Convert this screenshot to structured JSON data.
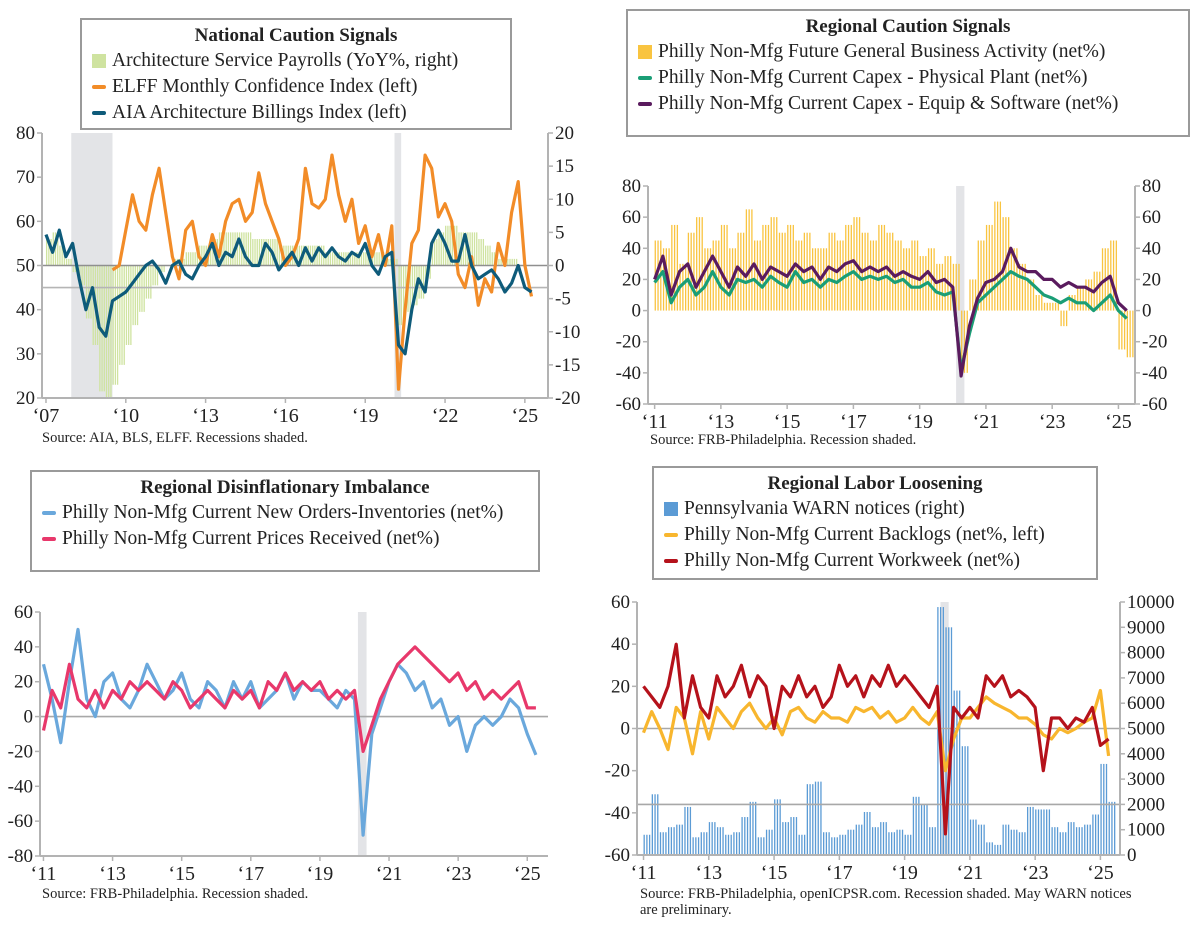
{
  "chart_data": [
    {
      "type": "bar+line",
      "title": "National Caution Signals",
      "source": "Source: AIA, BLS, ELFF. Recessions shaded.",
      "left_axis": {
        "min": 20,
        "max": 80,
        "ticks": [
          20,
          30,
          40,
          50,
          60,
          70,
          80
        ]
      },
      "right_axis": {
        "min": -20,
        "max": 20,
        "ticks": [
          -20,
          -15,
          -10,
          -5,
          0,
          5,
          10,
          15,
          20
        ]
      },
      "xticks": [
        {
          "year": 2007,
          "label": "‘07"
        },
        {
          "year": 2010,
          "label": "‘10"
        },
        {
          "year": 2013,
          "label": "‘13"
        },
        {
          "year": 2016,
          "label": "‘16"
        },
        {
          "year": 2019,
          "label": "‘19"
        },
        {
          "year": 2022,
          "label": "‘22"
        },
        {
          "year": 2025,
          "label": "‘25"
        }
      ],
      "recessions": [
        [
          2007.95,
          2009.5
        ],
        [
          2020.1,
          2020.35
        ]
      ],
      "hlines": [
        {
          "axis": "left",
          "value": 50,
          "color": "#8f8f8f"
        },
        {
          "axis": "left",
          "value": 45,
          "color": "#b5b5b5"
        }
      ],
      "series": [
        {
          "name": "Architecture Service Payrolls (YoY%, right)",
          "type": "bar",
          "axis": "right",
          "color": "#cfe3a0",
          "start": 2007,
          "step": 0.25,
          "values": [
            4,
            5,
            3,
            1,
            -1,
            -3,
            -8,
            -12,
            -19,
            -20,
            -18,
            -15,
            -12,
            -9,
            -7,
            -5,
            -3,
            -1,
            0,
            1,
            1,
            2,
            2,
            3,
            3,
            4,
            5,
            5,
            5,
            5,
            5,
            4,
            4,
            4,
            4,
            3,
            3,
            3,
            3,
            3,
            3,
            3,
            2,
            2,
            2,
            2,
            2,
            2,
            2,
            2,
            2,
            1,
            1,
            -9,
            -7,
            -6,
            -5,
            -2,
            4,
            5,
            6,
            6,
            5,
            5,
            5,
            4,
            3,
            2,
            1,
            1,
            1,
            0,
            0,
            0
          ]
        },
        {
          "name": "ELFF Monthly Confidence Index (left)",
          "type": "line",
          "axis": "left",
          "color": "#f28c28",
          "start": 2009.5,
          "step": 0.25,
          "values": [
            49,
            50,
            58,
            66,
            60,
            58,
            66,
            72,
            62,
            52,
            47,
            58,
            60,
            52,
            50,
            57,
            52,
            60,
            64,
            65,
            60,
            62,
            71,
            64,
            60,
            56,
            50,
            52,
            56,
            72,
            64,
            63,
            65,
            75,
            66,
            60,
            65,
            55,
            59,
            52,
            57,
            50,
            59,
            22,
            40,
            55,
            58,
            75,
            72,
            61,
            64,
            60,
            48,
            45,
            52,
            41,
            47,
            44,
            55,
            50,
            62,
            69,
            50,
            43
          ]
        },
        {
          "name": "AIA Architecture Billings Index (left)",
          "type": "line",
          "axis": "left",
          "color": "#0e5b7a",
          "start": 2007,
          "step": 0.25,
          "values": [
            57,
            53,
            58,
            52,
            55,
            47,
            40,
            45,
            36,
            34,
            42,
            43,
            44,
            46,
            48,
            50,
            51,
            49,
            46,
            50,
            51,
            48,
            47,
            50,
            52,
            55,
            50,
            53,
            52,
            56,
            52,
            50,
            50,
            55,
            53,
            49,
            51,
            53,
            50,
            54,
            51,
            54,
            52,
            54,
            52,
            51,
            53,
            52,
            55,
            50,
            48,
            52,
            53,
            32,
            30,
            40,
            47,
            44,
            55,
            58,
            55,
            51,
            51,
            57,
            50,
            47,
            48,
            49,
            47,
            44,
            46,
            50,
            45,
            44
          ]
        }
      ]
    },
    {
      "type": "bar+line",
      "title": "Regional Caution Signals",
      "source": "Source: FRB-Philadelphia. Recession shaded.",
      "left_axis": {
        "min": -60,
        "max": 80,
        "ticks": [
          -60,
          -40,
          -20,
          0,
          20,
          40,
          60,
          80
        ]
      },
      "right_axis": {
        "min": -60,
        "max": 80,
        "ticks": [
          -60,
          -40,
          -20,
          0,
          20,
          40,
          60,
          80
        ]
      },
      "xticks": [
        {
          "year": 2011,
          "label": "‘11"
        },
        {
          "year": 2013,
          "label": "‘13"
        },
        {
          "year": 2015,
          "label": "‘15"
        },
        {
          "year": 2017,
          "label": "‘17"
        },
        {
          "year": 2019,
          "label": "‘19"
        },
        {
          "year": 2021,
          "label": "‘21"
        },
        {
          "year": 2023,
          "label": "‘23"
        },
        {
          "year": 2025,
          "label": "‘25"
        }
      ],
      "recessions": [
        [
          2020.1,
          2020.35
        ]
      ],
      "hlines": [],
      "series": [
        {
          "name": "Philly Non-Mfg Future General Business Activity (net%)",
          "type": "bar",
          "axis": "left",
          "color": "#f9c440",
          "start": 2011,
          "step": 0.25,
          "values": [
            45,
            40,
            55,
            30,
            50,
            60,
            40,
            45,
            55,
            40,
            50,
            65,
            45,
            55,
            60,
            50,
            55,
            45,
            50,
            40,
            40,
            50,
            45,
            55,
            60,
            50,
            45,
            55,
            50,
            45,
            40,
            45,
            35,
            40,
            30,
            35,
            30,
            -40,
            20,
            45,
            55,
            70,
            60,
            40,
            30,
            20,
            10,
            5,
            5,
            -10,
            10,
            15,
            20,
            25,
            40,
            45,
            -25,
            -30
          ]
        },
        {
          "name": "Philly Non-Mfg Current Capex - Physical Plant (net%)",
          "type": "line",
          "axis": "left",
          "color": "#1a9e76",
          "start": 2011,
          "step": 0.25,
          "values": [
            18,
            25,
            5,
            15,
            20,
            10,
            15,
            25,
            15,
            10,
            20,
            18,
            20,
            15,
            22,
            18,
            15,
            25,
            18,
            20,
            15,
            20,
            18,
            22,
            25,
            20,
            22,
            20,
            22,
            18,
            20,
            15,
            15,
            18,
            12,
            10,
            12,
            -38,
            -15,
            5,
            10,
            15,
            20,
            25,
            22,
            20,
            15,
            10,
            8,
            5,
            8,
            5,
            5,
            0,
            5,
            10,
            0,
            -5
          ]
        },
        {
          "name": "Philly Non-Mfg Current Capex - Equip & Software (net%)",
          "type": "line",
          "axis": "left",
          "color": "#5a1b5e",
          "start": 2011,
          "step": 0.25,
          "values": [
            20,
            35,
            10,
            25,
            30,
            15,
            25,
            35,
            25,
            15,
            28,
            22,
            30,
            20,
            28,
            25,
            22,
            30,
            25,
            28,
            20,
            28,
            25,
            30,
            32,
            25,
            28,
            25,
            28,
            22,
            25,
            22,
            20,
            25,
            18,
            20,
            15,
            -42,
            -10,
            8,
            18,
            20,
            25,
            40,
            28,
            25,
            25,
            20,
            20,
            15,
            18,
            15,
            15,
            12,
            18,
            22,
            5,
            0
          ]
        }
      ]
    },
    {
      "type": "line",
      "title": "Regional Disinflationary Imbalance",
      "source": "Source: FRB-Philadelphia. Recession shaded.",
      "left_axis": {
        "min": -80,
        "max": 60,
        "ticks": [
          -80,
          -60,
          -40,
          -20,
          0,
          20,
          40,
          60
        ]
      },
      "xticks": [
        {
          "year": 2011,
          "label": "‘11"
        },
        {
          "year": 2013,
          "label": "‘13"
        },
        {
          "year": 2015,
          "label": "‘15"
        },
        {
          "year": 2017,
          "label": "‘17"
        },
        {
          "year": 2019,
          "label": "‘19"
        },
        {
          "year": 2021,
          "label": "‘21"
        },
        {
          "year": 2023,
          "label": "‘23"
        },
        {
          "year": 2025,
          "label": "‘25"
        }
      ],
      "recessions": [
        [
          2020.1,
          2020.35
        ]
      ],
      "hlines": [
        {
          "axis": "left",
          "value": 0,
          "color": "#a8a8a8"
        }
      ],
      "series": [
        {
          "name": "Philly Non-Mfg Current New Orders-Inventories (net%)",
          "type": "line",
          "axis": "left",
          "color": "#6aa8dc",
          "start": 2011,
          "step": 0.25,
          "values": [
            30,
            10,
            -15,
            20,
            50,
            10,
            0,
            20,
            25,
            10,
            5,
            15,
            30,
            20,
            10,
            15,
            25,
            10,
            5,
            20,
            15,
            5,
            20,
            10,
            20,
            5,
            10,
            15,
            25,
            10,
            20,
            15,
            15,
            10,
            5,
            15,
            10,
            -68,
            -10,
            5,
            20,
            30,
            25,
            15,
            20,
            5,
            10,
            -5,
            0,
            -20,
            -5,
            0,
            -5,
            0,
            10,
            5,
            -10,
            -22
          ]
        },
        {
          "name": "Philly Non-Mfg Current Prices Received (net%)",
          "type": "line",
          "axis": "left",
          "color": "#e8386b",
          "start": 2011,
          "step": 0.25,
          "values": [
            -8,
            15,
            5,
            30,
            10,
            5,
            15,
            5,
            15,
            10,
            20,
            15,
            20,
            15,
            10,
            20,
            15,
            5,
            10,
            15,
            10,
            5,
            15,
            10,
            15,
            5,
            20,
            15,
            25,
            15,
            20,
            15,
            20,
            10,
            15,
            10,
            15,
            -20,
            -5,
            10,
            20,
            30,
            35,
            40,
            35,
            30,
            25,
            20,
            25,
            15,
            20,
            10,
            15,
            10,
            15,
            20,
            5,
            5
          ]
        }
      ]
    },
    {
      "type": "bar+line",
      "title": "Regional Labor Loosening",
      "source": "Source: FRB-Philadelphia, openICPSR.com. Recession shaded. May WARN notices are preliminary.",
      "left_axis": {
        "min": -60,
        "max": 60,
        "ticks": [
          -60,
          -40,
          -20,
          0,
          20,
          40,
          60
        ]
      },
      "right_axis": {
        "min": 0,
        "max": 10000,
        "ticks": [
          0,
          1000,
          2000,
          3000,
          4000,
          5000,
          6000,
          7000,
          8000,
          9000,
          10000
        ]
      },
      "xticks": [
        {
          "year": 2011,
          "label": "‘11"
        },
        {
          "year": 2013,
          "label": "‘13"
        },
        {
          "year": 2015,
          "label": "‘15"
        },
        {
          "year": 2017,
          "label": "‘17"
        },
        {
          "year": 2019,
          "label": "‘19"
        },
        {
          "year": 2021,
          "label": "‘21"
        },
        {
          "year": 2023,
          "label": "‘23"
        },
        {
          "year": 2025,
          "label": "‘25"
        }
      ],
      "recessions": [
        [
          2020.1,
          2020.35
        ]
      ],
      "hlines": [
        {
          "axis": "left",
          "value": 0,
          "color": "#a8a8a8"
        },
        {
          "axis": "right",
          "value": 2000,
          "color": "#a8a8a8"
        }
      ],
      "series": [
        {
          "name": "Pennsylvania WARN notices (right)",
          "type": "bar",
          "axis": "right",
          "color": "#5b9bd5",
          "start": 2011,
          "step": 0.25,
          "values": [
            800,
            2400,
            900,
            1100,
            1200,
            1900,
            700,
            900,
            1300,
            1100,
            800,
            900,
            1500,
            2100,
            700,
            1000,
            2200,
            1300,
            1500,
            800,
            2800,
            2900,
            900,
            700,
            800,
            1000,
            1200,
            1700,
            1100,
            1300,
            900,
            1000,
            800,
            2300,
            2000,
            1100,
            9800,
            9000,
            6500,
            4300,
            1400,
            1200,
            500,
            400,
            1200,
            1000,
            900,
            1900,
            1800,
            1800,
            1100,
            900,
            1300,
            1100,
            1200,
            1600,
            3600,
            2100
          ]
        },
        {
          "name": "Philly Non-Mfg Current Backlogs (net%, left)",
          "type": "line",
          "axis": "left",
          "color": "#f8b62e",
          "start": 2011,
          "step": 0.25,
          "values": [
            -2,
            8,
            0,
            -10,
            10,
            5,
            -12,
            8,
            -5,
            10,
            5,
            0,
            8,
            12,
            5,
            0,
            5,
            -3,
            8,
            10,
            5,
            3,
            8,
            5,
            5,
            3,
            10,
            8,
            10,
            5,
            8,
            3,
            5,
            10,
            5,
            2,
            8,
            -20,
            -5,
            5,
            5,
            10,
            15,
            12,
            10,
            8,
            5,
            5,
            2,
            -3,
            -5,
            0,
            -2,
            0,
            3,
            5,
            18,
            -13
          ]
        },
        {
          "name": "Philly Non-Mfg Current Workweek (net%)",
          "type": "line",
          "axis": "left",
          "color": "#b5121b",
          "start": 2011,
          "step": 0.25,
          "values": [
            20,
            15,
            10,
            20,
            40,
            5,
            25,
            10,
            5,
            25,
            15,
            20,
            30,
            15,
            25,
            20,
            0,
            20,
            15,
            25,
            15,
            20,
            10,
            15,
            30,
            20,
            25,
            15,
            25,
            20,
            30,
            20,
            25,
            20,
            15,
            10,
            20,
            -50,
            10,
            5,
            10,
            5,
            25,
            20,
            25,
            15,
            18,
            15,
            10,
            -20,
            5,
            5,
            0,
            5,
            3,
            10,
            -8,
            -5
          ]
        }
      ]
    }
  ]
}
